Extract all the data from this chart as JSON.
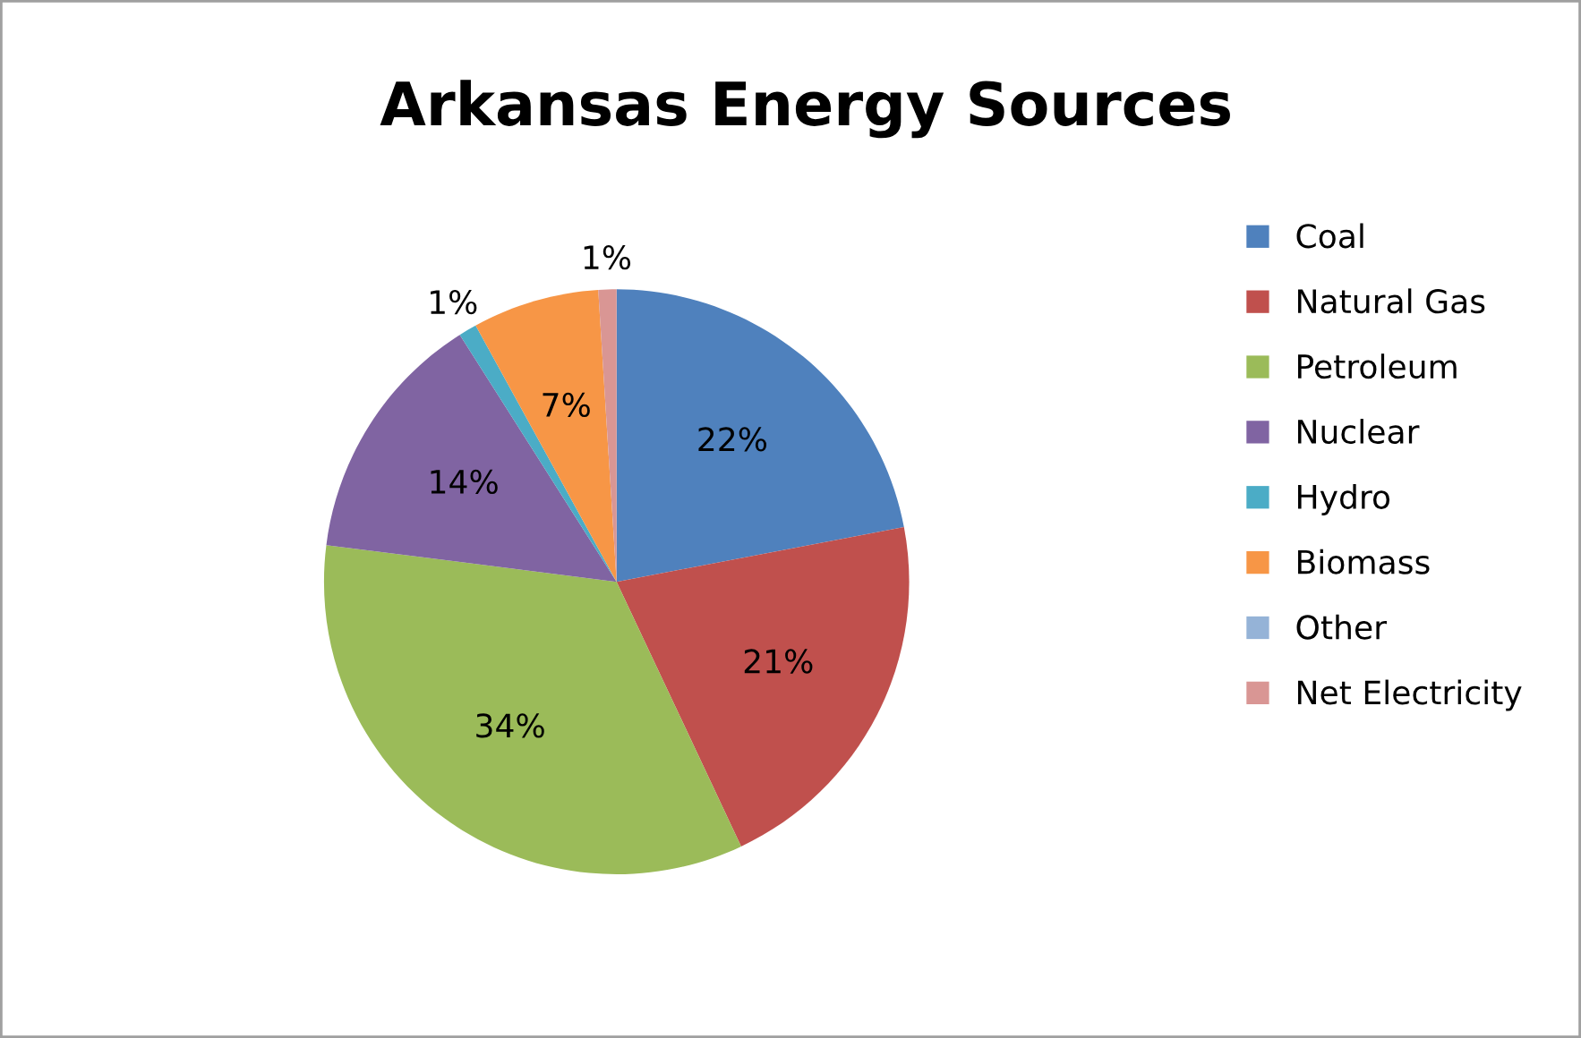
{
  "chart_data": {
    "type": "pie",
    "title": "Arkansas Energy Sources",
    "categories": [
      "Coal",
      "Natural Gas",
      "Petroleum",
      "Nuclear",
      "Hydro",
      "Biomass",
      "Other",
      "Net Electricity"
    ],
    "values": [
      22,
      21,
      34,
      14,
      1,
      7,
      0,
      1
    ],
    "value_labels": [
      "22%",
      "21%",
      "34%",
      "14%",
      "1%",
      "7%",
      null,
      "1%"
    ],
    "colors": [
      "#4f81bd",
      "#c0504d",
      "#9bbb59",
      "#8064a2",
      "#4bacc6",
      "#f79646",
      "#95b3d7",
      "#d99694"
    ],
    "legend": "right"
  }
}
